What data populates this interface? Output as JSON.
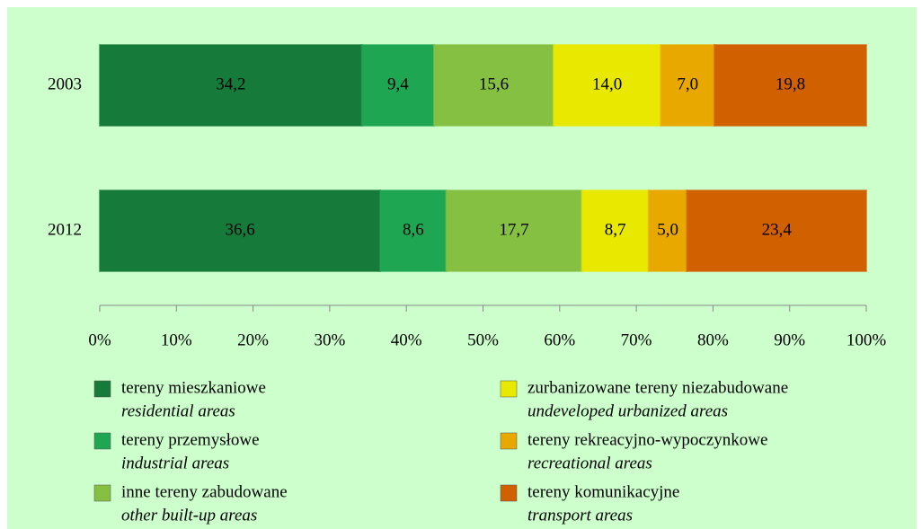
{
  "chart_data": {
    "type": "stacked-bar-horizontal",
    "categories": [
      "2003",
      "2012"
    ],
    "series": [
      {
        "name": "tereny mieszkaniowe",
        "name_en": "residential areas",
        "color": "#167a3a",
        "values": [
          34.2,
          36.6
        ],
        "value_labels": [
          "34,2",
          "36,6"
        ]
      },
      {
        "name": "tereny przemysłowe",
        "name_en": "industrial areas",
        "color": "#1fa653",
        "values": [
          9.4,
          8.6
        ],
        "value_labels": [
          "9,4",
          "8,6"
        ]
      },
      {
        "name": "inne tereny zabudowane",
        "name_en": "other built-up areas",
        "color": "#86c042",
        "values": [
          15.6,
          17.7
        ],
        "value_labels": [
          "15,6",
          "17,7"
        ]
      },
      {
        "name": "zurbanizowane tereny niezabudowane",
        "name_en": "undeveloped urbanized areas",
        "color": "#e8e800",
        "values": [
          14.0,
          8.7
        ],
        "value_labels": [
          "14,0",
          "8,7"
        ]
      },
      {
        "name": "tereny rekreacyjno-wypoczynkowe",
        "name_en": "recreational areas",
        "color": "#e8a800",
        "values": [
          7.0,
          5.0
        ],
        "value_labels": [
          "7,0",
          "5,0"
        ]
      },
      {
        "name": "tereny komunikacyjne",
        "name_en": "transport areas",
        "color": "#d06000",
        "values": [
          19.8,
          23.4
        ],
        "value_labels": [
          "19,8",
          "23,4"
        ]
      }
    ],
    "xlim": [
      0,
      100
    ],
    "xticks": [
      {
        "value": 0,
        "label": "0%"
      },
      {
        "value": 10,
        "label": "10%"
      },
      {
        "value": 20,
        "label": "20%"
      },
      {
        "value": 30,
        "label": "30%"
      },
      {
        "value": 40,
        "label": "40%"
      },
      {
        "value": 50,
        "label": "50%"
      },
      {
        "value": 60,
        "label": "60%"
      },
      {
        "value": 70,
        "label": "70%"
      },
      {
        "value": 80,
        "label": "80%"
      },
      {
        "value": 90,
        "label": "90%"
      },
      {
        "value": 100,
        "label": "100%"
      }
    ],
    "legend": "bottom"
  }
}
